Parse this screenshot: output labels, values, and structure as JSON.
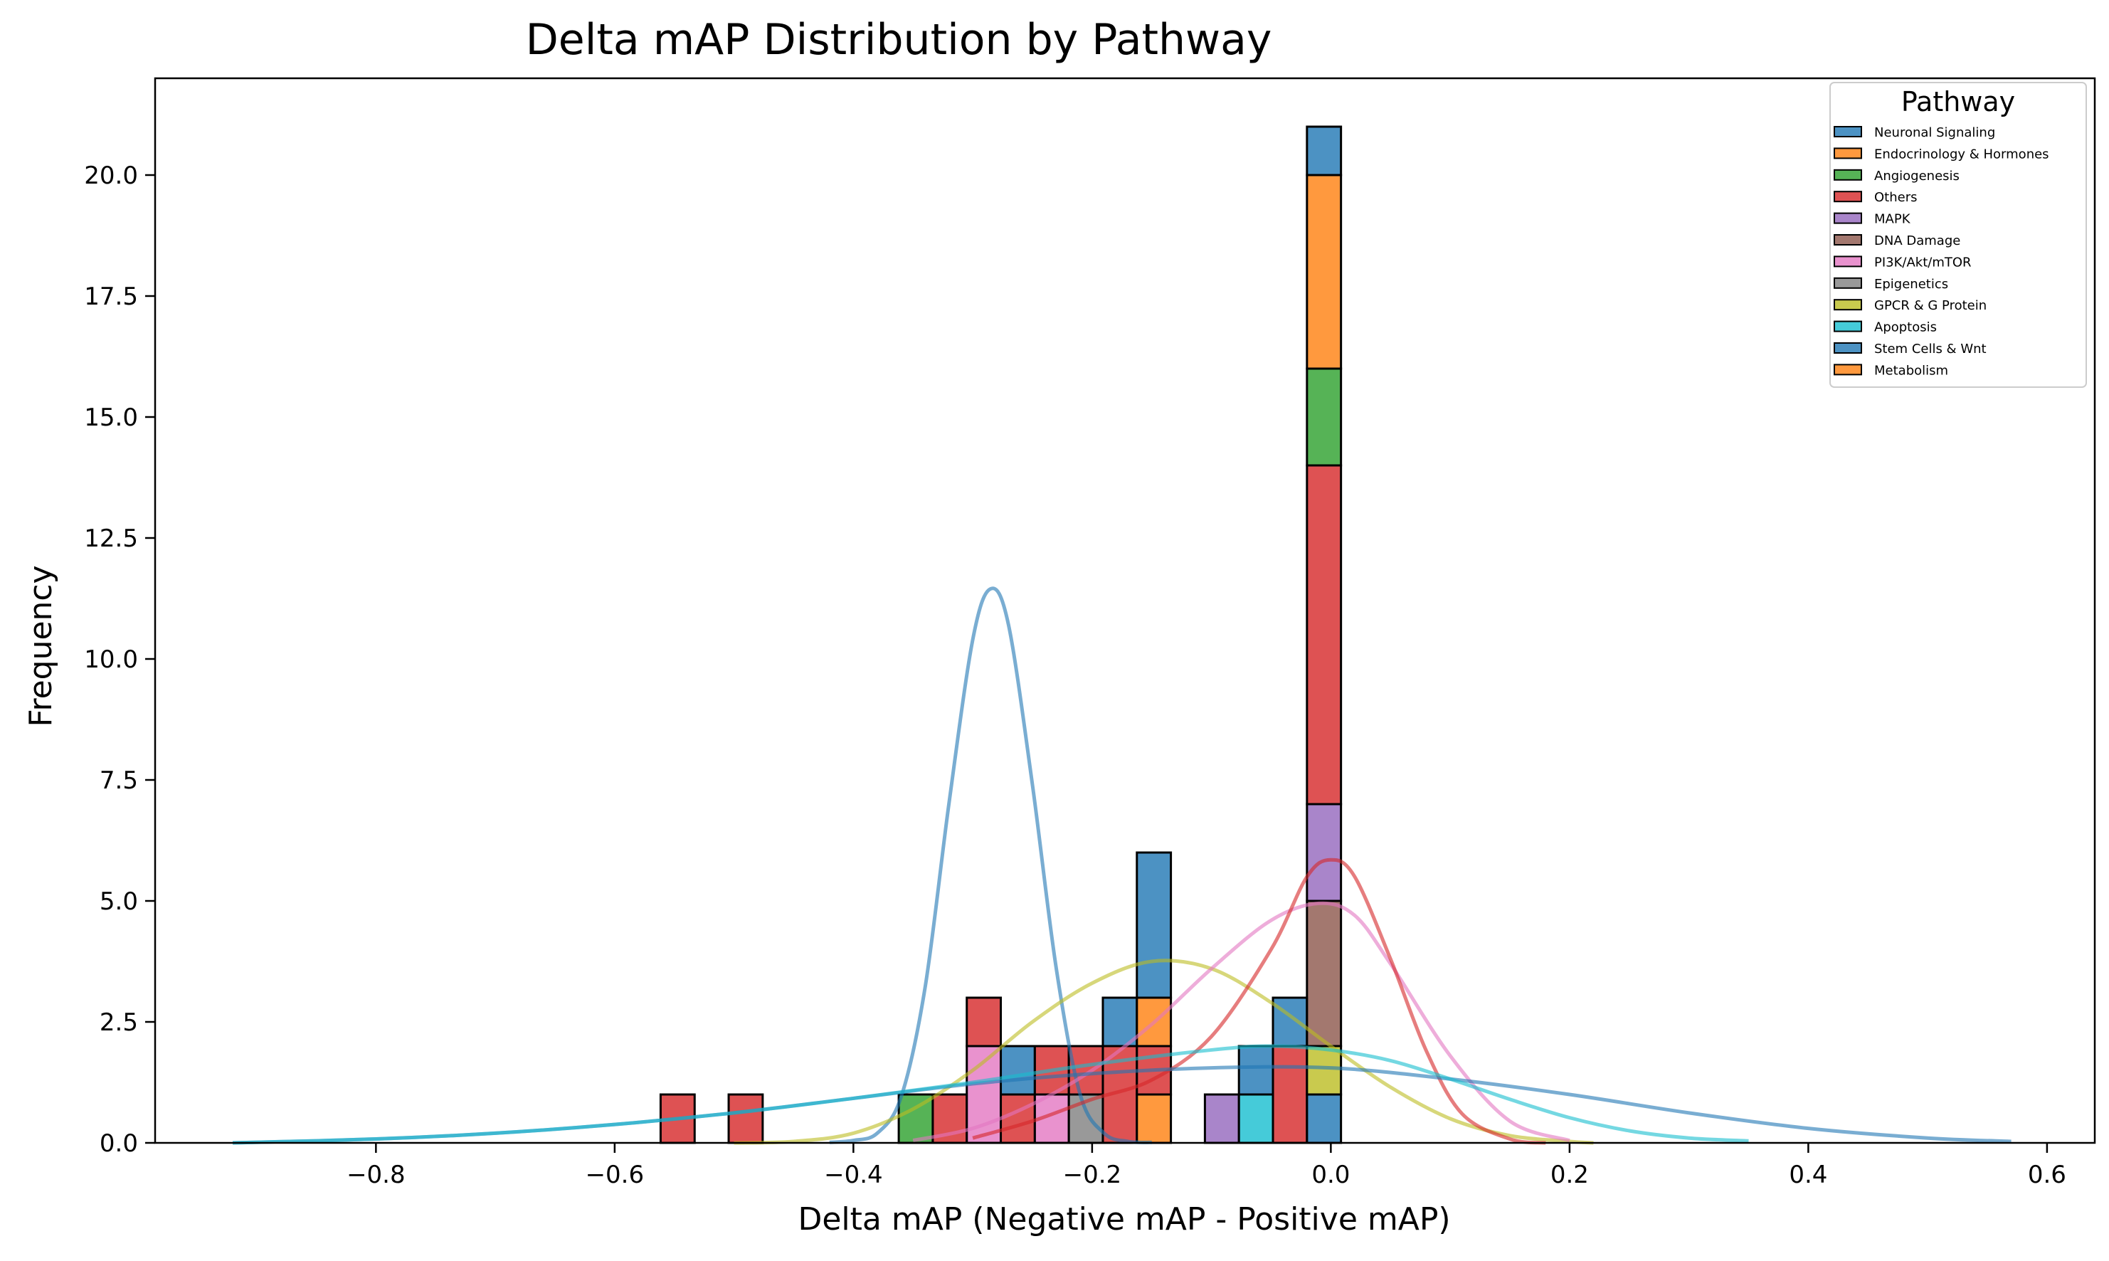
{
  "chart_data": {
    "type": "bar",
    "subtype": "stacked histogram with KDE curves",
    "title": "Delta mAP Distribution by Pathway",
    "xlabel": "Delta mAP (Negative mAP - Positive mAP)",
    "ylabel": "Frequency",
    "xlim": [
      -0.985,
      0.64
    ],
    "ylim": [
      0,
      22
    ],
    "x_ticks": [
      -0.8,
      -0.6,
      -0.4,
      -0.2,
      0.0,
      0.2,
      0.4,
      0.6
    ],
    "x_tick_labels": [
      "−0.8",
      "−0.6",
      "−0.4",
      "−0.2",
      "0.0",
      "0.2",
      "0.4",
      "0.6"
    ],
    "y_ticks": [
      0,
      2.5,
      5,
      7.5,
      10,
      12.5,
      15,
      17.5,
      20
    ],
    "y_tick_labels": [
      "0.0",
      "2.5",
      "5.0",
      "7.5",
      "10.0",
      "12.5",
      "15.0",
      "17.5",
      "20.0"
    ],
    "bin_width": 0.0285,
    "legend": {
      "title": "Pathway",
      "placement": "top-right",
      "entries": [
        "Neuronal Signaling",
        "Endocrinology & Hormones",
        "Angiogenesis",
        "Others",
        "MAPK",
        "DNA Damage",
        "PI3K/Akt/mTOR",
        "Epigenetics",
        "GPCR & G Protein",
        "Apoptosis",
        "Stem Cells &  Wnt",
        "Metabolism"
      ]
    },
    "series_colors": [
      "#1f77b4",
      "#ff7f0e",
      "#2ca02c",
      "#d62728",
      "#9467bd",
      "#8c564b",
      "#e377c2",
      "#7f7f7f",
      "#bcbd22",
      "#17becf",
      "#1f77b4",
      "#ff7f0e"
    ],
    "stacks": [
      {
        "x0": -0.5615,
        "segments": [
          {
            "s": 3,
            "n": 1
          }
        ]
      },
      {
        "x0": -0.5045,
        "segments": [
          {
            "s": 3,
            "n": 1
          }
        ]
      },
      {
        "x0": -0.362,
        "segments": [
          {
            "s": 2,
            "n": 1
          }
        ]
      },
      {
        "x0": -0.3335,
        "segments": [
          {
            "s": 3,
            "n": 1
          }
        ]
      },
      {
        "x0": -0.305,
        "segments": [
          {
            "s": 6,
            "n": 2
          },
          {
            "s": 3,
            "n": 1
          }
        ]
      },
      {
        "x0": -0.2765,
        "segments": [
          {
            "s": 3,
            "n": 1
          },
          {
            "s": 0,
            "n": 1
          }
        ]
      },
      {
        "x0": -0.248,
        "segments": [
          {
            "s": 6,
            "n": 1
          },
          {
            "s": 3,
            "n": 1
          }
        ]
      },
      {
        "x0": -0.2195,
        "segments": [
          {
            "s": 7,
            "n": 1
          },
          {
            "s": 3,
            "n": 1
          }
        ]
      },
      {
        "x0": -0.191,
        "segments": [
          {
            "s": 3,
            "n": 2
          },
          {
            "s": 0,
            "n": 1
          }
        ]
      },
      {
        "x0": -0.1625,
        "segments": [
          {
            "s": 1,
            "n": 1
          },
          {
            "s": 3,
            "n": 1
          },
          {
            "s": 1,
            "n": 1
          },
          {
            "s": 0,
            "n": 3
          }
        ]
      },
      {
        "x0": -0.1055,
        "segments": [
          {
            "s": 4,
            "n": 1
          }
        ]
      },
      {
        "x0": -0.077,
        "segments": [
          {
            "s": 9,
            "n": 1
          },
          {
            "s": 0,
            "n": 1
          }
        ]
      },
      {
        "x0": -0.0485,
        "segments": [
          {
            "s": 3,
            "n": 2
          },
          {
            "s": 0,
            "n": 1
          }
        ]
      },
      {
        "x0": -0.02,
        "segments": [
          {
            "s": 0,
            "n": 1
          },
          {
            "s": 8,
            "n": 1
          },
          {
            "s": 5,
            "n": 3
          },
          {
            "s": 4,
            "n": 2
          },
          {
            "s": 3,
            "n": 7
          },
          {
            "s": 2,
            "n": 2
          },
          {
            "s": 1,
            "n": 4
          },
          {
            "s": 0,
            "n": 1
          }
        ]
      }
    ],
    "kde_curves": [
      {
        "series": 0,
        "color": "#1f77b4",
        "points": [
          [
            -0.42,
            0.01
          ],
          [
            -0.4,
            0.05
          ],
          [
            -0.38,
            0.2
          ],
          [
            -0.36,
            0.95
          ],
          [
            -0.34,
            3.2
          ],
          [
            -0.32,
            7.0
          ],
          [
            -0.3,
            10.4
          ],
          [
            -0.285,
            11.45
          ],
          [
            -0.27,
            10.7
          ],
          [
            -0.25,
            7.4
          ],
          [
            -0.23,
            3.6
          ],
          [
            -0.21,
            1.0
          ],
          [
            -0.19,
            0.2
          ],
          [
            -0.17,
            0.03
          ],
          [
            -0.15,
            0.01
          ]
        ]
      },
      {
        "series": 8,
        "color": "#bcbd22",
        "points": [
          [
            -0.5,
            0.0
          ],
          [
            -0.45,
            0.03
          ],
          [
            -0.4,
            0.2
          ],
          [
            -0.35,
            0.7
          ],
          [
            -0.3,
            1.5
          ],
          [
            -0.25,
            2.5
          ],
          [
            -0.2,
            3.3
          ],
          [
            -0.15,
            3.75
          ],
          [
            -0.1,
            3.6
          ],
          [
            -0.05,
            2.9
          ],
          [
            0.0,
            2.0
          ],
          [
            0.05,
            1.15
          ],
          [
            0.1,
            0.5
          ],
          [
            0.15,
            0.15
          ],
          [
            0.2,
            0.03
          ],
          [
            0.22,
            0.0
          ]
        ]
      },
      {
        "series": 6,
        "color": "#e377c2",
        "points": [
          [
            -0.35,
            0.05
          ],
          [
            -0.3,
            0.3
          ],
          [
            -0.25,
            0.8
          ],
          [
            -0.2,
            1.5
          ],
          [
            -0.15,
            2.45
          ],
          [
            -0.1,
            3.6
          ],
          [
            -0.05,
            4.6
          ],
          [
            -0.01,
            4.95
          ],
          [
            0.02,
            4.7
          ],
          [
            0.05,
            3.7
          ],
          [
            0.1,
            1.8
          ],
          [
            0.15,
            0.45
          ],
          [
            0.2,
            0.05
          ]
        ]
      },
      {
        "series": 3,
        "color": "#d62728",
        "points": [
          [
            -0.3,
            0.1
          ],
          [
            -0.25,
            0.45
          ],
          [
            -0.2,
            0.9
          ],
          [
            -0.15,
            1.3
          ],
          [
            -0.1,
            2.2
          ],
          [
            -0.05,
            4.0
          ],
          [
            -0.02,
            5.5
          ],
          [
            0.0,
            5.85
          ],
          [
            0.02,
            5.5
          ],
          [
            0.05,
            3.8
          ],
          [
            0.08,
            1.9
          ],
          [
            0.11,
            0.6
          ],
          [
            0.15,
            0.08
          ],
          [
            0.18,
            0.0
          ]
        ]
      },
      {
        "series": 10,
        "color": "#1f77b4",
        "points": [
          [
            -0.92,
            0.0
          ],
          [
            -0.8,
            0.08
          ],
          [
            -0.7,
            0.2
          ],
          [
            -0.6,
            0.38
          ],
          [
            -0.5,
            0.62
          ],
          [
            -0.4,
            0.92
          ],
          [
            -0.3,
            1.22
          ],
          [
            -0.2,
            1.43
          ],
          [
            -0.1,
            1.55
          ],
          [
            0.0,
            1.55
          ],
          [
            0.1,
            1.32
          ],
          [
            0.2,
            1.0
          ],
          [
            0.3,
            0.62
          ],
          [
            0.4,
            0.3
          ],
          [
            0.5,
            0.1
          ],
          [
            0.57,
            0.03
          ]
        ]
      },
      {
        "series": 9,
        "color": "#17becf",
        "points": [
          [
            -0.92,
            0.0
          ],
          [
            -0.8,
            0.08
          ],
          [
            -0.7,
            0.2
          ],
          [
            -0.6,
            0.38
          ],
          [
            -0.5,
            0.62
          ],
          [
            -0.4,
            0.92
          ],
          [
            -0.3,
            1.25
          ],
          [
            -0.2,
            1.62
          ],
          [
            -0.1,
            1.92
          ],
          [
            -0.05,
            2.0
          ],
          [
            0.0,
            1.92
          ],
          [
            0.05,
            1.7
          ],
          [
            0.1,
            1.32
          ],
          [
            0.15,
            0.9
          ],
          [
            0.2,
            0.52
          ],
          [
            0.25,
            0.25
          ],
          [
            0.3,
            0.1
          ],
          [
            0.35,
            0.04
          ]
        ]
      }
    ]
  }
}
